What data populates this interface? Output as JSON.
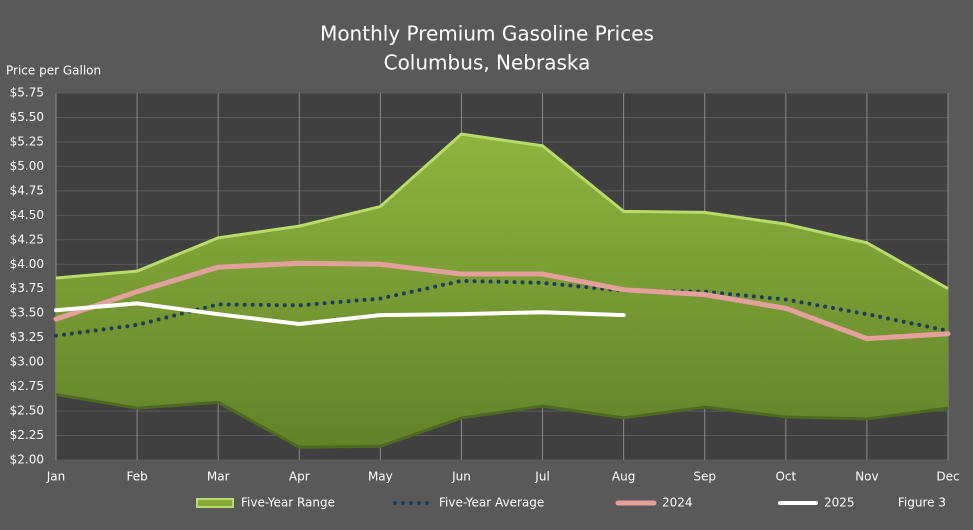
{
  "chart_data": {
    "type": "line",
    "title": "Monthly Premium Gasoline Prices",
    "subtitle": "Columbus, Nebraska",
    "y_label": "Price per Gallon",
    "annotation": "Figure 3",
    "categories": [
      "Jan",
      "Feb",
      "Mar",
      "Apr",
      "May",
      "Jun",
      "Jul",
      "Aug",
      "Sep",
      "Oct",
      "Nov",
      "Dec"
    ],
    "range": {
      "name": "Five-Year Range",
      "color": "#86a83a",
      "high": [
        3.86,
        3.93,
        4.27,
        4.39,
        4.59,
        5.33,
        5.21,
        4.54,
        4.53,
        4.41,
        4.22,
        3.75
      ],
      "low": [
        2.67,
        2.53,
        2.59,
        2.13,
        2.14,
        2.43,
        2.55,
        2.43,
        2.54,
        2.44,
        2.42,
        2.53
      ]
    },
    "series": [
      {
        "name": "Five-Year Average",
        "color": "#1f3b5a",
        "style": "dotted",
        "values": [
          3.27,
          3.38,
          3.59,
          3.58,
          3.65,
          3.83,
          3.81,
          3.73,
          3.72,
          3.64,
          3.49,
          3.32
        ]
      },
      {
        "name": "2024",
        "color": "#e3a09c",
        "style": "solid",
        "values": [
          3.44,
          3.72,
          3.97,
          4.01,
          4.0,
          3.9,
          3.9,
          3.74,
          3.69,
          3.55,
          3.24,
          3.29
        ]
      },
      {
        "name": "2025",
        "color": "#ffffff",
        "style": "solid",
        "values": [
          3.53,
          3.6,
          3.49,
          3.39,
          3.48,
          3.49,
          3.51,
          3.48,
          null,
          null,
          null,
          null
        ]
      }
    ],
    "ylim": [
      2.0,
      5.75
    ],
    "yticks": [
      {
        "value": 2.0,
        "label": "$2.00"
      },
      {
        "value": 2.25,
        "label": "$2.25"
      },
      {
        "value": 2.5,
        "label": "$2.50"
      },
      {
        "value": 2.75,
        "label": "$2.75"
      },
      {
        "value": 3.0,
        "label": "$3.00"
      },
      {
        "value": 3.25,
        "label": "$3.25"
      },
      {
        "value": 3.5,
        "label": "$3.50"
      },
      {
        "value": 3.75,
        "label": "$3.75"
      },
      {
        "value": 4.0,
        "label": "$4.00"
      },
      {
        "value": 4.25,
        "label": "$4.25"
      },
      {
        "value": 4.5,
        "label": "$4.50"
      },
      {
        "value": 4.75,
        "label": "$4.75"
      },
      {
        "value": 5.0,
        "label": "$5.00"
      },
      {
        "value": 5.25,
        "label": "$5.25"
      },
      {
        "value": 5.5,
        "label": "$5.50"
      },
      {
        "value": 5.75,
        "label": "$5.75"
      }
    ],
    "grid": true,
    "legend": "bottom"
  }
}
